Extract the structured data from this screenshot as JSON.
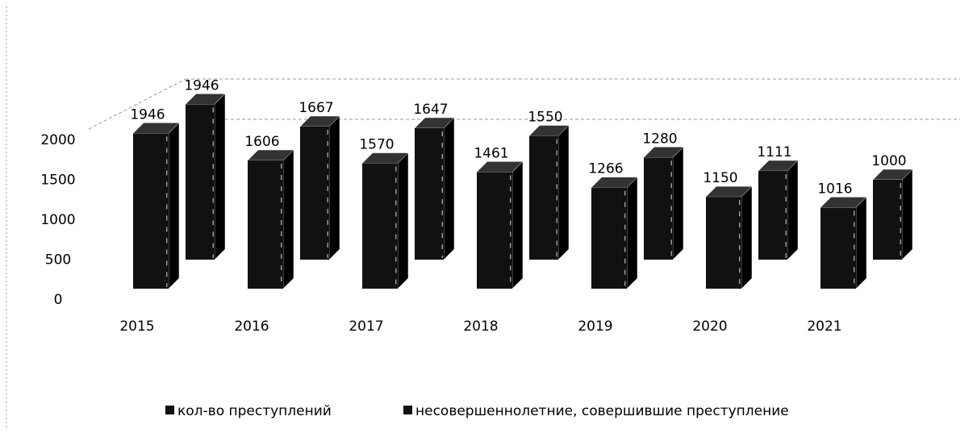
{
  "chart_data": {
    "type": "bar3d",
    "categories": [
      "2015",
      "2016",
      "2017",
      "2018",
      "2019",
      "2020",
      "2021"
    ],
    "series": [
      {
        "name": "кол-во преступлений",
        "color": "#111111",
        "values": [
          1946,
          1606,
          1570,
          1461,
          1266,
          1150,
          1016
        ]
      },
      {
        "name": "несовершеннолетние, совершившие преступление",
        "color": "#111111",
        "values": [
          1946,
          1667,
          1647,
          1550,
          1280,
          1111,
          1000
        ]
      }
    ],
    "ylim": [
      0,
      2000
    ],
    "yticks": [
      0,
      500,
      1000,
      1500,
      2000
    ],
    "legend": "bottom"
  }
}
